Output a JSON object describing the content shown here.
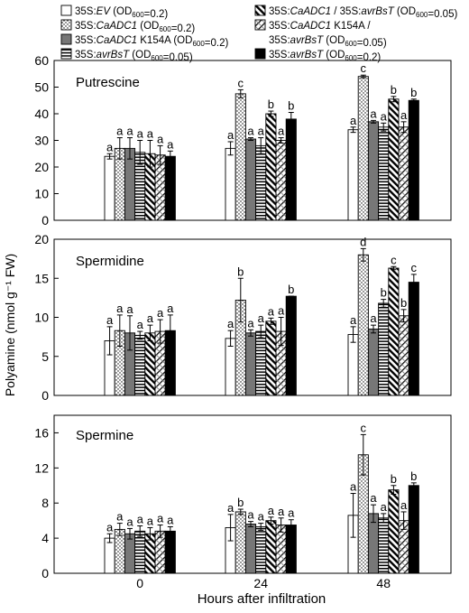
{
  "figure": {
    "ylabel": "Polyamine (nmol g⁻¹ FW)",
    "xlabel": "Hours after infiltration"
  },
  "legend": [
    {
      "id": "ev",
      "pattern": "white",
      "parts": [
        {
          "t": "35S:"
        },
        {
          "t": "EV",
          "i": true
        },
        {
          "t": " (OD"
        },
        {
          "t": "600",
          "sub": true
        },
        {
          "t": "=0.2)"
        }
      ]
    },
    {
      "id": "adc1",
      "pattern": "dots",
      "parts": [
        {
          "t": "35S:"
        },
        {
          "t": "CaADC1",
          "i": true
        },
        {
          "t": " (OD"
        },
        {
          "t": "600",
          "sub": true
        },
        {
          "t": "=0.2)"
        }
      ]
    },
    {
      "id": "k154a",
      "pattern": "gray",
      "parts": [
        {
          "t": "35S:"
        },
        {
          "t": "CaADC1",
          "i": true
        },
        {
          "t": " K154A (OD"
        },
        {
          "t": "600",
          "sub": true
        },
        {
          "t": "=0.2)"
        }
      ]
    },
    {
      "id": "avr005",
      "pattern": "hlines",
      "parts": [
        {
          "t": "35S:"
        },
        {
          "t": "avrBsT",
          "i": true
        },
        {
          "t": " (OD"
        },
        {
          "t": "600",
          "sub": true
        },
        {
          "t": "=0.05)"
        }
      ]
    },
    {
      "id": "co_adc",
      "pattern": "diag",
      "parts": [
        {
          "t": "35S:"
        },
        {
          "t": "CaADC1",
          "i": true
        },
        {
          "t": " / 35S:"
        },
        {
          "t": "avrBsT",
          "i": true
        },
        {
          "t": " (OD"
        },
        {
          "t": "600",
          "sub": true
        },
        {
          "t": "=0.05)"
        }
      ]
    },
    {
      "id": "co_k",
      "pattern": "cross",
      "parts": [
        {
          "t": "35S:"
        },
        {
          "t": "CaADC1",
          "i": true
        },
        {
          "t": " K154A /"
        }
      ],
      "parts2": [
        {
          "t": "35S:"
        },
        {
          "t": "avrBsT",
          "i": true
        },
        {
          "t": " (OD"
        },
        {
          "t": "600",
          "sub": true
        },
        {
          "t": "=0.05)"
        }
      ]
    },
    {
      "id": "avr02",
      "pattern": "black",
      "parts": [
        {
          "t": "35S:"
        },
        {
          "t": "avrBsT",
          "i": true
        },
        {
          "t": " (OD"
        },
        {
          "t": "600",
          "sub": true
        },
        {
          "t": "=0.2)"
        }
      ]
    }
  ],
  "chart_data": [
    {
      "type": "bar",
      "title": "Putrescine",
      "categories": [
        "0",
        "24",
        "48"
      ],
      "ylim": [
        0,
        60
      ],
      "yticks": [
        0,
        10,
        20,
        30,
        40,
        50,
        60
      ],
      "series": [
        {
          "name": "35S:EV (OD600=0.2)",
          "values": [
            24,
            27,
            34
          ],
          "errors": [
            1,
            2.5,
            1
          ],
          "letters": [
            "a",
            "a",
            "a"
          ]
        },
        {
          "name": "35S:CaADC1 (OD600=0.2)",
          "values": [
            27,
            47.5,
            54
          ],
          "errors": [
            4,
            1.5,
            0.5
          ],
          "letters": [
            "a",
            "c",
            "c"
          ]
        },
        {
          "name": "35S:CaADC1 K154A (OD600=0.2)",
          "values": [
            27,
            30.5,
            37
          ],
          "errors": [
            4,
            0.5,
            0.5
          ],
          "letters": [
            "a",
            "a",
            "a"
          ]
        },
        {
          "name": "35S:avrBsT (OD600=0.05)",
          "values": [
            25.5,
            28,
            35
          ],
          "errors": [
            4.5,
            3,
            1.5
          ],
          "letters": [
            "a",
            "a",
            "a"
          ]
        },
        {
          "name": "35S:CaADC1 / 35S:avrBsT (OD600=0.05)",
          "values": [
            25,
            40,
            45.5
          ],
          "errors": [
            5,
            1,
            1
          ],
          "letters": [
            "a",
            "b",
            "b"
          ]
        },
        {
          "name": "35S:CaADC1 K154A / 35S:avrBsT (OD600=0.05)",
          "values": [
            24.5,
            30,
            35
          ],
          "errors": [
            3.5,
            1,
            2
          ],
          "letters": [
            "a",
            "a",
            "a"
          ]
        },
        {
          "name": "35S:avrBsT (OD600=0.2)",
          "values": [
            24,
            38,
            45
          ],
          "errors": [
            2,
            2.5,
            0.5
          ],
          "letters": [
            "a",
            "b",
            "b"
          ]
        }
      ]
    },
    {
      "type": "bar",
      "title": "Spermidine",
      "categories": [
        "0",
        "24",
        "48"
      ],
      "ylim": [
        0,
        20
      ],
      "yticks": [
        0,
        5,
        10,
        15,
        20
      ],
      "series": [
        {
          "name": "35S:EV (OD600=0.2)",
          "values": [
            7,
            7.3,
            7.8
          ],
          "errors": [
            1.8,
            1,
            1
          ],
          "letters": [
            "a",
            "a",
            "a"
          ]
        },
        {
          "name": "35S:CaADC1 (OD600=0.2)",
          "values": [
            8.3,
            12.2,
            18
          ],
          "errors": [
            2,
            2.8,
            0.8
          ],
          "letters": [
            "a",
            "b",
            "d"
          ]
        },
        {
          "name": "35S:CaADC1 K154A (OD600=0.2)",
          "values": [
            8,
            8,
            8.5
          ],
          "errors": [
            2.2,
            0.4,
            0.5
          ],
          "letters": [
            "a",
            "a",
            "a"
          ]
        },
        {
          "name": "35S:avrBsT (OD600=0.05)",
          "values": [
            7.7,
            8.2,
            11.8
          ],
          "errors": [
            0.5,
            0.8,
            0.5
          ],
          "letters": [
            "a",
            "a",
            "b"
          ]
        },
        {
          "name": "35S:CaADC1 / 35S:avrBsT (OD600=0.05)",
          "values": [
            8,
            9.5,
            16.3
          ],
          "errors": [
            1,
            0.4,
            0.2
          ],
          "letters": [
            "a",
            "a",
            "c"
          ]
        },
        {
          "name": "35S:CaADC1 K154A / 35S:avrBsT (OD600=0.05)",
          "values": [
            8.2,
            8.2,
            10.2
          ],
          "errors": [
            1.5,
            1.8,
            0.8
          ],
          "letters": [
            "a",
            "a",
            "b"
          ]
        },
        {
          "name": "35S:avrBsT (OD600=0.2)",
          "values": [
            8.3,
            12.7,
            14.5
          ],
          "errors": [
            2,
            0,
            1
          ],
          "letters": [
            "a",
            "b",
            "c"
          ]
        }
      ]
    },
    {
      "type": "bar",
      "title": "Spermine",
      "categories": [
        "0",
        "24",
        "48"
      ],
      "ylim": [
        0,
        18
      ],
      "yticks": [
        0,
        4,
        8,
        12,
        16
      ],
      "series": [
        {
          "name": "35S:EV (OD600=0.2)",
          "values": [
            4,
            5.2,
            6.6
          ],
          "errors": [
            0.5,
            1.5,
            2.5
          ],
          "letters": [
            "a",
            "a",
            "a"
          ]
        },
        {
          "name": "35S:CaADC1 (OD600=0.2)",
          "values": [
            5,
            7,
            13.5
          ],
          "errors": [
            0.7,
            0.3,
            2.3
          ],
          "letters": [
            "a",
            "b",
            "c"
          ]
        },
        {
          "name": "35S:CaADC1 K154A (OD600=0.2)",
          "values": [
            4.5,
            5.6,
            6.8
          ],
          "errors": [
            0.6,
            0.3,
            1
          ],
          "letters": [
            "a",
            "a",
            "a"
          ]
        },
        {
          "name": "35S:avrBsT (OD600=0.05)",
          "values": [
            4.8,
            5.3,
            6.3
          ],
          "errors": [
            0.6,
            0.4,
            0.5
          ],
          "letters": [
            "a",
            "a",
            "a"
          ]
        },
        {
          "name": "35S:CaADC1 / 35S:avrBsT (OD600=0.05)",
          "values": [
            4.5,
            6,
            9.5
          ],
          "errors": [
            0.7,
            0.4,
            0.5
          ],
          "letters": [
            "a",
            "a",
            "b"
          ]
        },
        {
          "name": "35S:CaADC1 K154A / 35S:avrBsT (OD600=0.05)",
          "values": [
            4.8,
            5.5,
            6
          ],
          "errors": [
            0.7,
            0.8,
            1
          ],
          "letters": [
            "a",
            "a",
            "a"
          ]
        },
        {
          "name": "35S:avrBsT (OD600=0.2)",
          "values": [
            4.8,
            5.5,
            10
          ],
          "errors": [
            0.5,
            0.6,
            0.3
          ],
          "letters": [
            "a",
            "a",
            "b"
          ]
        }
      ]
    }
  ]
}
